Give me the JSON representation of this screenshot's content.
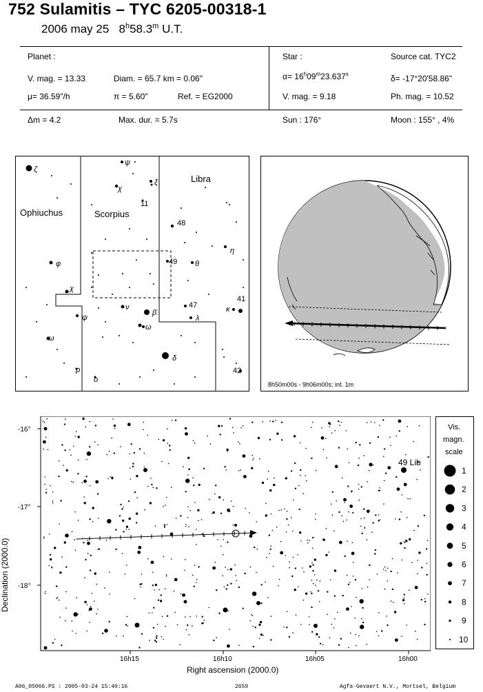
{
  "header": {
    "title": "752 Sulamitis  –  TYC 6205-00318-1",
    "date": "2006 may 25",
    "time_h": "8",
    "time_h_sup": "h",
    "time_m": "58.3",
    "time_m_sup": "m",
    "time_ut": "U.T."
  },
  "planet": {
    "label": "Planet :",
    "vmag": "V. mag. = 13.33",
    "diam": "Diam. = 65.7 km = 0.06\"",
    "mu": "μ=  36.59\"/h",
    "pi": "π = 5.60\"",
    "ref": "Ref. = EG2000"
  },
  "star": {
    "label": "Star :",
    "source": "Source cat.  TYC2",
    "alpha_prefix": "α= 16",
    "alpha_h": "h",
    "alpha_m_val": "09",
    "alpha_m": "m",
    "alpha_s_val": "23.637",
    "alpha_s": "s",
    "delta": "δ= -17°20'58.86\"",
    "vmag": "V. mag. =  9.18",
    "phmag": "Ph. mag. = 10.52"
  },
  "bottom_row": {
    "dm": "Δm = 4.2",
    "maxdur": "Max. dur. = 5.7s",
    "sun": "Sun : 176°",
    "moon": "Moon : 155°  ,  4%"
  },
  "constellation_map": {
    "labels": {
      "ophiuchus": "Ophiuchus",
      "scorpius": "Scorpius",
      "libra": "Libra"
    },
    "star_labels": [
      {
        "t": "ζ"
      },
      {
        "t": "ψ"
      },
      {
        "t": "χ"
      },
      {
        "t": "ξ"
      },
      {
        "t": "11"
      },
      {
        "t": "48"
      },
      {
        "t": "φ"
      },
      {
        "t": "49"
      },
      {
        "t": "θ"
      },
      {
        "t": "η"
      },
      {
        "t": "χ"
      },
      {
        "t": "ν"
      },
      {
        "t": "β"
      },
      {
        "t": "47"
      },
      {
        "t": "41"
      },
      {
        "t": "κ"
      },
      {
        "t": "ψ"
      },
      {
        "t": "λ"
      },
      {
        "t": "ω"
      },
      {
        "t": "ω"
      },
      {
        "t": "δ"
      },
      {
        "t": "ρ"
      },
      {
        "t": "o"
      },
      {
        "t": "42"
      }
    ]
  },
  "globe": {
    "caption": "8h50m00s - 9h06m00s; int. 1m"
  },
  "starfield": {
    "y_axis_label": "Declination (2000.0)",
    "x_axis_label": "Right ascension (2000.0)",
    "y_ticks": [
      "-16°",
      "-17°",
      "-18°"
    ],
    "x_ticks": [
      "16h15",
      "16h10",
      "16h05",
      "16h00"
    ],
    "star_label": "49 Lib"
  },
  "mag_scale": {
    "title1": "Vis.",
    "title2": "magn.",
    "title3": "scale",
    "items": [
      "1",
      "2",
      "3",
      "4",
      "5",
      "6",
      "7",
      "8",
      "9",
      "10"
    ]
  },
  "footer": {
    "left": "A06_05066.PS : 2005-03-24 15:40:16",
    "middle": "2659",
    "right": "Agfa-Gevaert N.V., Mortsel, Belgium"
  }
}
